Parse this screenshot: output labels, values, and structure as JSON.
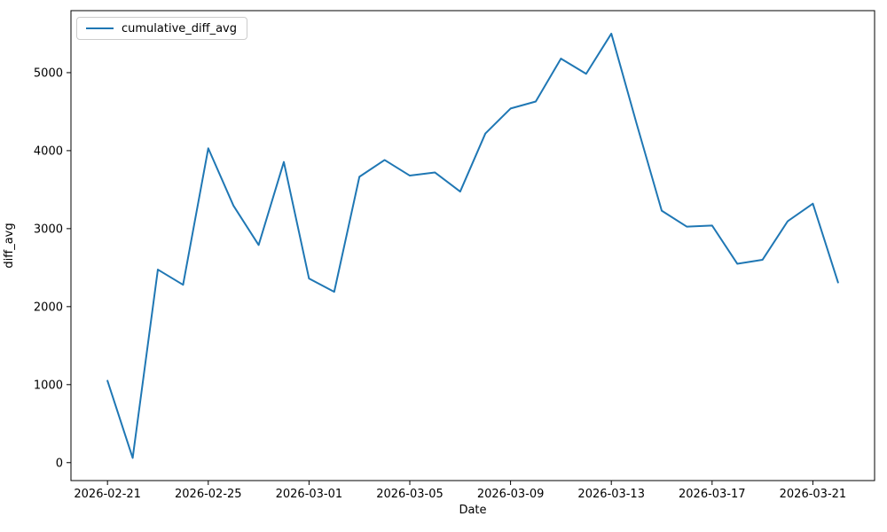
{
  "colors": {
    "line": "#1f77b4",
    "spine": "#000000",
    "tick": "#000000",
    "text": "#000000",
    "legend_border": "#cccccc",
    "background": "#ffffff"
  },
  "legend": {
    "entries": [
      {
        "label": "cumulative_diff_avg"
      }
    ]
  },
  "chart_data": {
    "type": "line",
    "title": "",
    "xlabel": "Date",
    "ylabel": "diff_avg",
    "grid": false,
    "legend_position": "upper left",
    "x": [
      "2026-02-21",
      "2026-02-22",
      "2026-02-23",
      "2026-02-24",
      "2026-02-25",
      "2026-02-26",
      "2026-02-27",
      "2026-02-28",
      "2026-03-01",
      "2026-03-02",
      "2026-03-03",
      "2026-03-04",
      "2026-03-05",
      "2026-03-06",
      "2026-03-07",
      "2026-03-08",
      "2026-03-09",
      "2026-03-10",
      "2026-03-11",
      "2026-03-12",
      "2026-03-13",
      "2026-03-14",
      "2026-03-15",
      "2026-03-16",
      "2026-03-17",
      "2026-03-18",
      "2026-03-19",
      "2026-03-20",
      "2026-03-21",
      "2026-03-22"
    ],
    "series": [
      {
        "name": "cumulative_diff_avg",
        "color": "#1f77b4",
        "values": [
          1050,
          60,
          2475,
          2280,
          4030,
          3295,
          2790,
          3855,
          2360,
          2190,
          3665,
          3880,
          3680,
          3720,
          3475,
          4220,
          4540,
          4630,
          5180,
          4985,
          5500,
          4350,
          3230,
          3025,
          3040,
          2550,
          2600,
          3095,
          3320,
          2310
        ]
      }
    ],
    "x_ticks": {
      "indices": [
        0,
        4,
        8,
        12,
        16,
        20,
        24,
        28
      ],
      "labels": [
        "2026-02-21",
        "2026-02-25",
        "2026-03-01",
        "2026-03-05",
        "2026-03-09",
        "2026-03-13",
        "2026-03-17",
        "2026-03-21"
      ]
    },
    "y_ticks": [
      0,
      1000,
      2000,
      3000,
      4000,
      5000
    ],
    "xlim_index": [
      -1.45,
      30.45
    ],
    "ylim": [
      -230,
      5795
    ]
  }
}
